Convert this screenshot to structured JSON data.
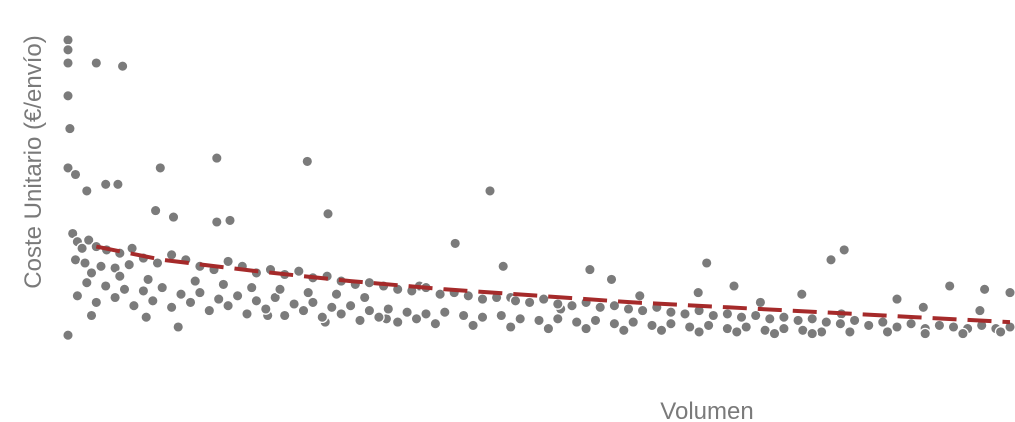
{
  "chart_data": {
    "type": "scatter",
    "title": "",
    "xlabel": "Volumen",
    "ylabel": "Coste Unitario (€/envío)",
    "x_ticks_shown": false,
    "y_ticks_shown": false,
    "grid": false,
    "legend": "none",
    "colors": {
      "points": "#7b7b7b",
      "point_edge": "#ffffff",
      "trend": "#a52a2a"
    },
    "xlim": [
      0,
      100
    ],
    "ylim": [
      0,
      100
    ],
    "series": [
      {
        "points": [
          [
            0.0,
            100.0
          ],
          [
            0.0,
            97.0
          ],
          [
            0.0,
            93.0
          ],
          [
            0.0,
            83.0
          ],
          [
            0.0,
            61.0
          ],
          [
            0.8,
            59.0
          ],
          [
            0.2,
            73.0
          ],
          [
            3.0,
            93.0
          ],
          [
            5.8,
            92.0
          ],
          [
            4.0,
            56.0
          ],
          [
            5.3,
            56.0
          ],
          [
            9.8,
            61.0
          ],
          [
            2.0,
            54.0
          ],
          [
            9.3,
            48.0
          ],
          [
            11.2,
            46.0
          ],
          [
            15.8,
            64.0
          ],
          [
            25.4,
            63.0
          ],
          [
            27.6,
            47.0
          ],
          [
            17.2,
            45.0
          ],
          [
            15.8,
            44.5
          ],
          [
            44.8,
            54.0
          ],
          [
            41.1,
            38.0
          ],
          [
            46.2,
            31.0
          ],
          [
            55.4,
            30.0
          ],
          [
            67.8,
            32.0
          ],
          [
            82.4,
            36.0
          ],
          [
            81.0,
            33.0
          ],
          [
            93.6,
            25.0
          ],
          [
            97.3,
            24.0
          ],
          [
            100.0,
            23.0
          ],
          [
            73.5,
            20.0
          ],
          [
            82.1,
            16.5
          ],
          [
            52.3,
            18.0
          ],
          [
            33.8,
            15.0
          ],
          [
            0.0,
            10.0
          ],
          [
            11.7,
            12.5
          ],
          [
            27.3,
            14.0
          ],
          [
            66.9,
            23.0
          ],
          [
            60.7,
            22.0
          ],
          [
            57.7,
            27.0
          ],
          [
            2.5,
            16.0
          ],
          [
            8.3,
            15.5
          ],
          [
            21.2,
            16.0
          ],
          [
            37.3,
            25.0
          ],
          [
            47.0,
            21.5
          ],
          [
            70.7,
            25.0
          ],
          [
            77.9,
            22.5
          ],
          [
            88.0,
            21.0
          ],
          [
            90.8,
            18.5
          ],
          [
            96.8,
            17.5
          ],
          [
            0.5,
            41.0
          ],
          [
            1.0,
            38.5
          ],
          [
            1.5,
            36.5
          ],
          [
            2.2,
            39.0
          ],
          [
            3.0,
            37.0
          ],
          [
            4.1,
            36.0
          ],
          [
            5.5,
            35.0
          ],
          [
            6.8,
            36.5
          ],
          [
            0.8,
            33.0
          ],
          [
            1.8,
            32.0
          ],
          [
            3.5,
            31.0
          ],
          [
            5.0,
            30.5
          ],
          [
            6.5,
            31.5
          ],
          [
            8.0,
            33.5
          ],
          [
            9.5,
            32.0
          ],
          [
            11.0,
            34.5
          ],
          [
            12.5,
            33.0
          ],
          [
            14.0,
            31.0
          ],
          [
            15.5,
            30.0
          ],
          [
            17.0,
            32.5
          ],
          [
            18.5,
            31.0
          ],
          [
            20.0,
            29.0
          ],
          [
            21.5,
            30.0
          ],
          [
            23.0,
            28.5
          ],
          [
            24.5,
            29.5
          ],
          [
            26.0,
            27.5
          ],
          [
            27.5,
            28.0
          ],
          [
            29.0,
            26.5
          ],
          [
            30.5,
            25.5
          ],
          [
            32.0,
            26.0
          ],
          [
            33.5,
            25.0
          ],
          [
            35.0,
            24.0
          ],
          [
            36.5,
            23.5
          ],
          [
            38.0,
            24.5
          ],
          [
            39.5,
            22.5
          ],
          [
            41.0,
            23.0
          ],
          [
            42.5,
            22.0
          ],
          [
            44.0,
            21.0
          ],
          [
            45.5,
            21.5
          ],
          [
            47.5,
            20.5
          ],
          [
            49.0,
            20.0
          ],
          [
            50.5,
            21.0
          ],
          [
            52.0,
            19.5
          ],
          [
            53.5,
            19.0
          ],
          [
            55.0,
            20.0
          ],
          [
            56.5,
            18.5
          ],
          [
            58.0,
            19.0
          ],
          [
            59.5,
            18.0
          ],
          [
            61.0,
            17.5
          ],
          [
            62.5,
            18.5
          ],
          [
            64.0,
            17.0
          ],
          [
            65.5,
            16.5
          ],
          [
            67.0,
            17.5
          ],
          [
            68.5,
            16.0
          ],
          [
            70.0,
            16.5
          ],
          [
            71.5,
            15.5
          ],
          [
            73.0,
            16.0
          ],
          [
            74.5,
            15.0
          ],
          [
            76.0,
            15.5
          ],
          [
            77.5,
            14.5
          ],
          [
            79.0,
            15.0
          ],
          [
            80.5,
            14.0
          ],
          [
            82.0,
            13.5
          ],
          [
            83.5,
            14.5
          ],
          [
            85.0,
            13.0
          ],
          [
            86.5,
            14.0
          ],
          [
            88.0,
            12.5
          ],
          [
            89.5,
            13.5
          ],
          [
            91.0,
            12.0
          ],
          [
            92.5,
            13.0
          ],
          [
            94.0,
            12.5
          ],
          [
            95.5,
            12.0
          ],
          [
            97.0,
            13.0
          ],
          [
            98.5,
            12.0
          ],
          [
            100.0,
            12.5
          ],
          [
            2.0,
            26.0
          ],
          [
            4.0,
            25.0
          ],
          [
            6.0,
            24.0
          ],
          [
            8.0,
            23.5
          ],
          [
            10.0,
            24.5
          ],
          [
            12.0,
            22.5
          ],
          [
            14.0,
            23.0
          ],
          [
            16.0,
            21.0
          ],
          [
            18.0,
            22.0
          ],
          [
            20.0,
            20.5
          ],
          [
            22.0,
            21.5
          ],
          [
            24.0,
            19.5
          ],
          [
            26.0,
            20.0
          ],
          [
            28.0,
            18.5
          ],
          [
            30.0,
            19.0
          ],
          [
            32.0,
            17.5
          ],
          [
            34.0,
            18.0
          ],
          [
            36.0,
            17.0
          ],
          [
            38.0,
            16.5
          ],
          [
            40.0,
            17.0
          ],
          [
            42.0,
            16.0
          ],
          [
            44.0,
            15.5
          ],
          [
            46.0,
            16.0
          ],
          [
            48.0,
            15.0
          ],
          [
            50.0,
            14.5
          ],
          [
            52.0,
            15.0
          ],
          [
            54.0,
            14.0
          ],
          [
            56.0,
            14.5
          ],
          [
            58.0,
            13.5
          ],
          [
            60.0,
            14.0
          ],
          [
            62.0,
            13.0
          ],
          [
            64.0,
            13.5
          ],
          [
            66.0,
            12.5
          ],
          [
            68.0,
            13.0
          ],
          [
            70.0,
            12.0
          ],
          [
            72.0,
            12.5
          ],
          [
            74.0,
            11.5
          ],
          [
            76.0,
            12.0
          ],
          [
            78.0,
            11.5
          ],
          [
            80.0,
            11.0
          ],
          [
            3.0,
            20.0
          ],
          [
            7.0,
            19.0
          ],
          [
            11.0,
            18.5
          ],
          [
            15.0,
            17.5
          ],
          [
            19.0,
            16.5
          ],
          [
            23.0,
            16.0
          ],
          [
            27.0,
            15.5
          ],
          [
            31.0,
            14.5
          ],
          [
            35.0,
            14.0
          ],
          [
            39.0,
            13.5
          ],
          [
            43.0,
            13.0
          ],
          [
            47.0,
            12.5
          ],
          [
            51.0,
            12.0
          ],
          [
            55.0,
            12.0
          ],
          [
            59.0,
            11.5
          ],
          [
            63.0,
            11.5
          ],
          [
            67.0,
            11.0
          ],
          [
            71.0,
            11.0
          ],
          [
            75.0,
            10.5
          ],
          [
            79.0,
            10.5
          ],
          [
            83.0,
            11.0
          ],
          [
            87.0,
            11.0
          ],
          [
            91.0,
            10.5
          ],
          [
            95.0,
            10.5
          ],
          [
            99.0,
            11.0
          ],
          [
            1.0,
            22.0
          ],
          [
            5.0,
            21.5
          ],
          [
            9.0,
            20.5
          ],
          [
            13.0,
            20.0
          ],
          [
            17.0,
            19.0
          ],
          [
            21.0,
            18.0
          ],
          [
            25.0,
            17.5
          ],
          [
            29.0,
            16.5
          ],
          [
            33.0,
            15.5
          ],
          [
            37.0,
            15.0
          ],
          [
            2.5,
            29.0
          ],
          [
            5.5,
            28.0
          ],
          [
            8.5,
            27.0
          ],
          [
            13.5,
            26.5
          ],
          [
            16.5,
            25.5
          ],
          [
            19.5,
            24.5
          ],
          [
            22.5,
            24.0
          ],
          [
            25.5,
            23.0
          ],
          [
            28.5,
            22.5
          ],
          [
            31.5,
            21.5
          ]
        ]
      }
    ],
    "trend": {
      "style": "dashed",
      "x": [
        3,
        10,
        20,
        30,
        40,
        50,
        60,
        70,
        80,
        90,
        100
      ],
      "y": [
        37,
        33,
        29.5,
        26.5,
        24,
        22,
        20,
        18.5,
        17,
        15.5,
        14
      ]
    }
  }
}
